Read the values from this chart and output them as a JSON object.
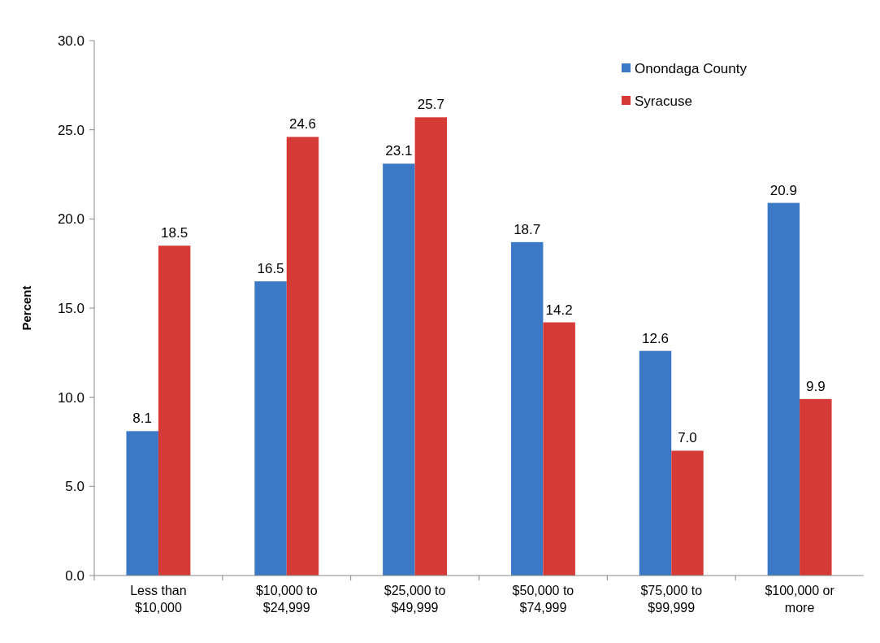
{
  "chart_data": {
    "type": "bar",
    "ylabel": "Percent",
    "categories": [
      "Less than\n$10,000",
      "$10,000 to\n$24,999",
      "$25,000 to\n$49,999",
      "$50,000 to\n$74,999",
      "$75,000 to\n$99,999",
      "$100,000 or\nmore"
    ],
    "series": [
      {
        "name": "Onondaga County",
        "color": "#3b78c6",
        "values": [
          8.1,
          16.5,
          23.1,
          18.7,
          12.6,
          20.9
        ],
        "value_labels": [
          "8.1",
          "16.5",
          "23.1",
          "18.7",
          "12.6",
          "20.9"
        ]
      },
      {
        "name": "Syracuse",
        "color": "#d63a36",
        "values": [
          18.5,
          24.6,
          25.7,
          14.2,
          7.0,
          9.9
        ],
        "value_labels": [
          "18.5",
          "24.6",
          "25.7",
          "14.2",
          "7.0",
          "9.9"
        ]
      }
    ],
    "ylim": [
      0,
      30
    ],
    "yticks": [
      {
        "value": 0,
        "label": "0.0"
      },
      {
        "value": 5,
        "label": "5.0"
      },
      {
        "value": 10,
        "label": "10.0"
      },
      {
        "value": 15,
        "label": "15.0"
      },
      {
        "value": 20,
        "label": "20.0"
      },
      {
        "value": 25,
        "label": "25.0"
      },
      {
        "value": 30,
        "label": "30.0"
      }
    ],
    "legend": "top right"
  }
}
